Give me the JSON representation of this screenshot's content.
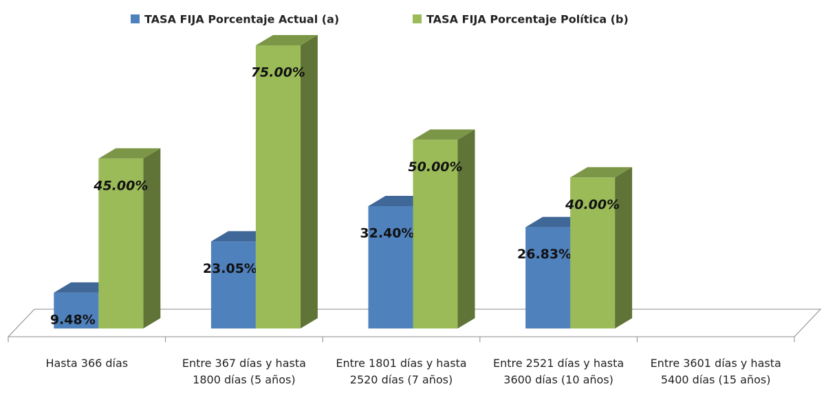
{
  "chart_data": {
    "type": "bar3d",
    "categories": [
      "Hasta 366 días",
      "Entre 367 días y hasta 1800 días (5 años)",
      "Entre 1801 días y hasta 2520 días (7 años)",
      "Entre 2521 días y hasta 3600 días (10 años)",
      "Entre 3601 días y hasta 5400 días (15 años)"
    ],
    "series": [
      {
        "name": "TASA FIJA Porcentaje Actual (a)",
        "color": "#4f81bd",
        "values": [
          9.48,
          23.05,
          32.4,
          26.83,
          null
        ],
        "value_labels": [
          "9.48%",
          "23.05%",
          "32.40%",
          "26.83%",
          null
        ]
      },
      {
        "name": "TASA FIJA Porcentaje Política (b)",
        "color": "#9bbb59",
        "values": [
          45.0,
          75.0,
          50.0,
          40.0,
          null
        ],
        "value_labels": [
          "45.00%",
          "75.00%",
          "50.00%",
          "40.00%",
          null
        ]
      }
    ],
    "legend": "top"
  }
}
